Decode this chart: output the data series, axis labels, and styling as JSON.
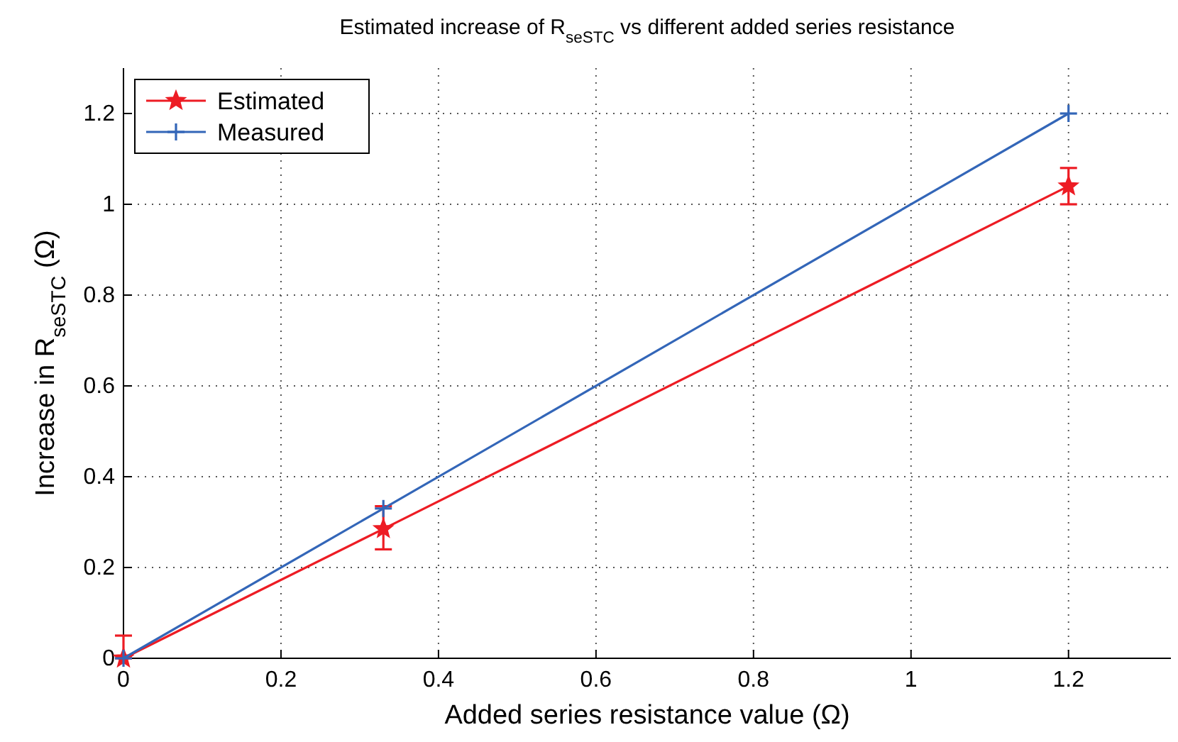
{
  "chart_data": {
    "type": "line",
    "title": "Estimated increase of R$_{seSTC}$ vs different added series resistance",
    "xlabel": "Added series resistance value (Ω)",
    "ylabel": "Increase in R$_{seSTC}$ (Ω)",
    "x": [
      0,
      0.33,
      1.2
    ],
    "series": [
      {
        "name": "Estimated",
        "color": "#ed1c24",
        "marker": "star",
        "values": [
          0,
          0.285,
          1.04
        ],
        "errors": [
          [
            0,
            0.05
          ],
          [
            0.24,
            0.335
          ],
          [
            1.0,
            1.08
          ]
        ]
      },
      {
        "name": "Measured",
        "color": "#3366b8",
        "marker": "cross",
        "values": [
          0,
          0.33,
          1.2
        ]
      }
    ],
    "xlim": [
      0,
      1.33
    ],
    "xticks": [
      0,
      0.2,
      0.4,
      0.6,
      0.8,
      1,
      1.2
    ],
    "ylim": [
      0,
      1.3
    ],
    "yticks": [
      0,
      0.2,
      0.4,
      0.6,
      0.8,
      1,
      1.2
    ],
    "grid": true,
    "legend": "top left",
    "line_style": "solid"
  }
}
